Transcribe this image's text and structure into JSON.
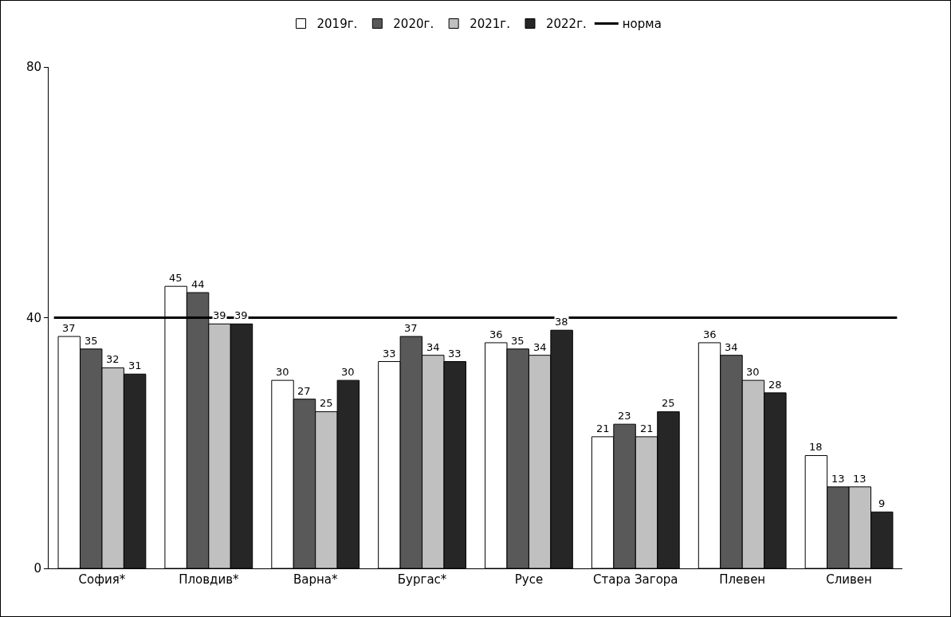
{
  "chart_data": {
    "type": "bar",
    "categories": [
      "София*",
      "Пловдив*",
      "Варна*",
      "Бургас*",
      "Русе",
      "Стара Загора",
      "Плевен",
      "Сливен"
    ],
    "series": [
      {
        "name": "2019г.",
        "color": "#ffffff",
        "values": [
          37,
          45,
          30,
          33,
          36,
          21,
          36,
          18
        ]
      },
      {
        "name": "2020г.",
        "color": "#595959",
        "values": [
          35,
          44,
          27,
          37,
          35,
          23,
          34,
          13
        ]
      },
      {
        "name": "2021г.",
        "color": "#c0c0c0",
        "values": [
          32,
          39,
          25,
          34,
          34,
          21,
          30,
          13
        ]
      },
      {
        "name": "2022г.",
        "color": "#262626",
        "values": [
          31,
          39,
          30,
          33,
          38,
          25,
          28,
          9
        ]
      }
    ],
    "ylim": [
      0,
      80
    ],
    "yticks": [
      0,
      40,
      80
    ],
    "grid": false,
    "legend": "top",
    "data_labels": true,
    "ref_lines": [
      {
        "axis": "y",
        "value": 40,
        "label": "норма",
        "color": "#000000",
        "line_style": "solid"
      }
    ]
  }
}
